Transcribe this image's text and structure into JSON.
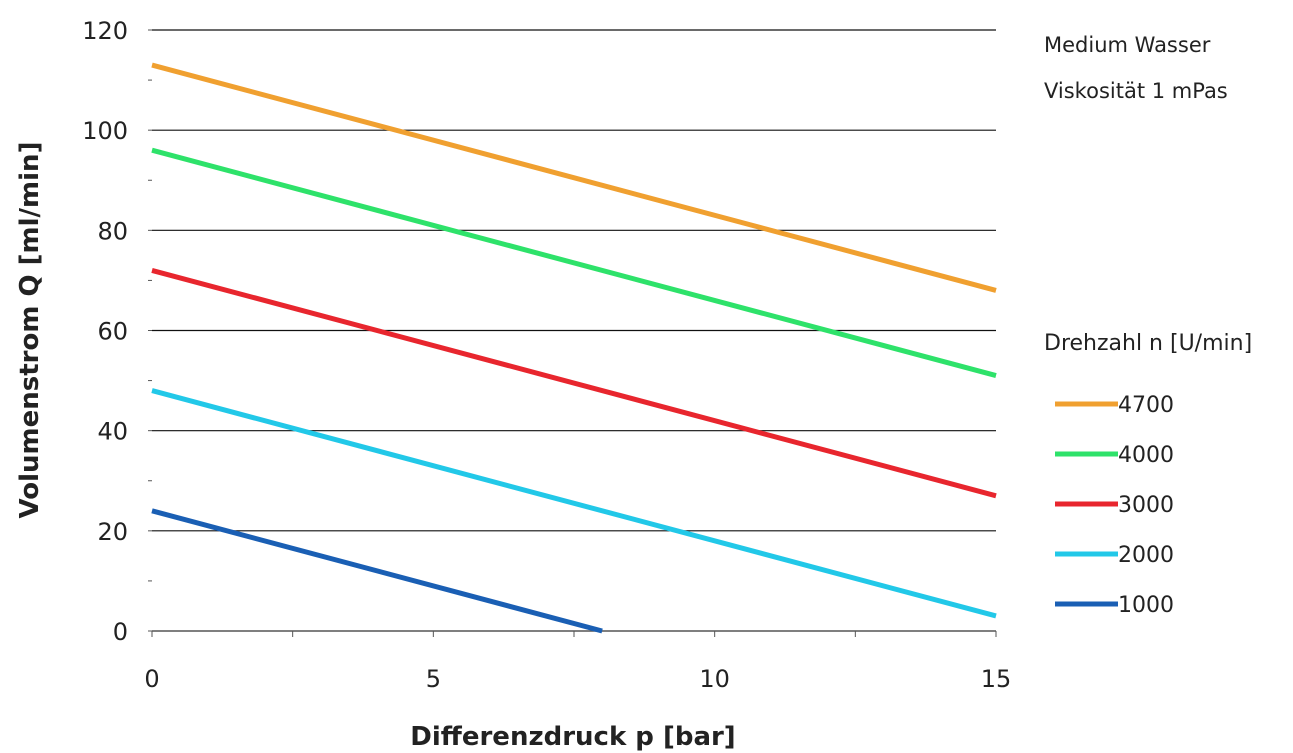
{
  "chart_data": {
    "type": "line",
    "xlabel": "Differenzdruck p [bar]",
    "ylabel": "Volumenstrom Q [ml/min]",
    "xlim": [
      0,
      15
    ],
    "ylim": [
      0,
      120
    ],
    "x_ticks": [
      0,
      5,
      10,
      15
    ],
    "x_tick_labels": [
      "0",
      "5",
      "10",
      "15"
    ],
    "y_ticks": [
      0,
      20,
      40,
      60,
      80,
      100,
      120
    ],
    "y_tick_labels": [
      "0",
      "20",
      "40",
      "60",
      "80",
      "100",
      "120"
    ],
    "grid": "horizontal",
    "annotations": [
      "Medium Wasser",
      "Viskosität 1 mPas"
    ],
    "legend_title": "Drehzahl n [U/min]",
    "legend_position": "right",
    "series": [
      {
        "name": "4700",
        "color": "#f0a030",
        "x": [
          0,
          15
        ],
        "y": [
          113,
          68
        ]
      },
      {
        "name": "4000",
        "color": "#2ee26a",
        "x": [
          0,
          15
        ],
        "y": [
          96,
          51
        ]
      },
      {
        "name": "3000",
        "color": "#e8262e",
        "x": [
          0,
          15
        ],
        "y": [
          72,
          27
        ]
      },
      {
        "name": "2000",
        "color": "#22c8e8",
        "x": [
          0,
          15
        ],
        "y": [
          48,
          3
        ]
      },
      {
        "name": "1000",
        "color": "#1a5fb4",
        "x": [
          0,
          8
        ],
        "y": [
          24,
          0
        ]
      }
    ]
  }
}
